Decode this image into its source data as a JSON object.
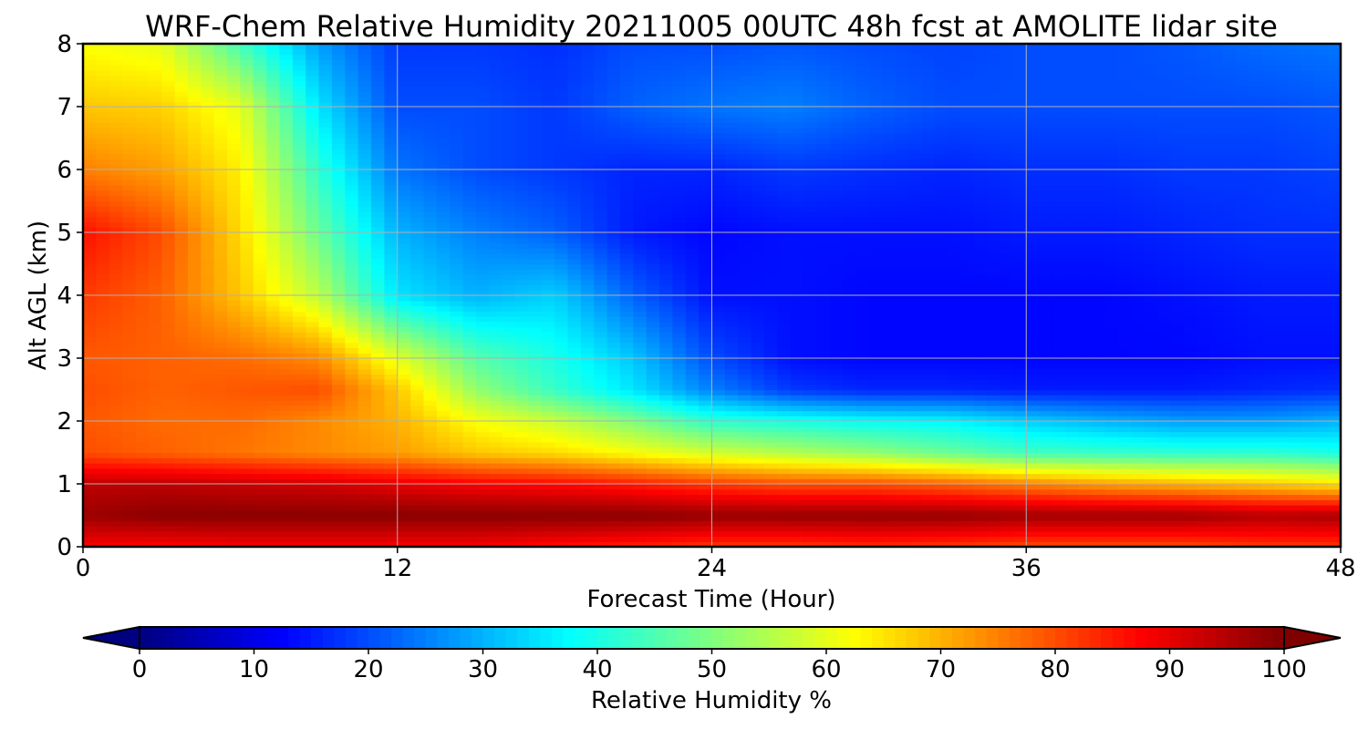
{
  "chart_data": {
    "type": "heatmap",
    "title": "WRF-Chem Relative Humidity 20211005 00UTC 48h fcst at AMOLITE lidar site",
    "xlabel": "Forecast Time (Hour)",
    "ylabel": "Alt AGL (km)",
    "xlim": [
      0,
      48
    ],
    "ylim": [
      0,
      8
    ],
    "x_ticks": [
      "0",
      "12",
      "24",
      "36",
      "48"
    ],
    "y_ticks": [
      "0",
      "1",
      "2",
      "3",
      "4",
      "5",
      "6",
      "7",
      "8"
    ],
    "grid": true,
    "colormap": "jet",
    "z_range": [
      0,
      100
    ],
    "x": [
      0,
      3,
      6,
      9,
      12,
      15,
      18,
      21,
      24,
      27,
      30,
      33,
      36,
      39,
      42,
      45,
      48
    ],
    "y": [
      0,
      0.5,
      1,
      1.5,
      2,
      2.5,
      3,
      4,
      5,
      6,
      7,
      8
    ],
    "z": [
      [
        88,
        87,
        88,
        88,
        88,
        88,
        86,
        84,
        82,
        82,
        83,
        82,
        80,
        80,
        80,
        82,
        82
      ],
      [
        97,
        99,
        99,
        99,
        99,
        99,
        99,
        99,
        98,
        98,
        98,
        98,
        97,
        97,
        97,
        95,
        96
      ],
      [
        94,
        94,
        93,
        92,
        90,
        88,
        87,
        85,
        82,
        80,
        80,
        78,
        75,
        72,
        70,
        68,
        65
      ],
      [
        80,
        78,
        76,
        74,
        72,
        68,
        66,
        62,
        58,
        55,
        52,
        48,
        44,
        43,
        42,
        42,
        40
      ],
      [
        79,
        77,
        77,
        74,
        70,
        62,
        57,
        50,
        42,
        40,
        38,
        37,
        33,
        30,
        28,
        28,
        30
      ],
      [
        80,
        78,
        79,
        80,
        68,
        52,
        43,
        35,
        25,
        18,
        16,
        16,
        15,
        15,
        15,
        16,
        17
      ],
      [
        79,
        78,
        77,
        74,
        60,
        46,
        40,
        32,
        20,
        14,
        13,
        13,
        13,
        13,
        13,
        14,
        14
      ],
      [
        82,
        78,
        68,
        56,
        35,
        30,
        33,
        22,
        14,
        14,
        13,
        13,
        13,
        13,
        14,
        15,
        15
      ],
      [
        86,
        80,
        66,
        48,
        30,
        25,
        22,
        15,
        13,
        14,
        14,
        14,
        15,
        15,
        16,
        17,
        17
      ],
      [
        75,
        72,
        64,
        42,
        24,
        20,
        18,
        16,
        16,
        18,
        17,
        16,
        17,
        17,
        18,
        18,
        19
      ],
      [
        68,
        67,
        60,
        35,
        20,
        20,
        18,
        22,
        24,
        25,
        22,
        20,
        20,
        20,
        20,
        20,
        21
      ],
      [
        62,
        60,
        44,
        28,
        18,
        18,
        17,
        20,
        20,
        21,
        20,
        19,
        20,
        20,
        21,
        23,
        24
      ]
    ],
    "colorbar": {
      "label": "Relative Humidity %",
      "ticks": [
        "0",
        "10",
        "20",
        "30",
        "40",
        "50",
        "60",
        "70",
        "80",
        "90",
        "100"
      ],
      "extend": "both"
    }
  }
}
